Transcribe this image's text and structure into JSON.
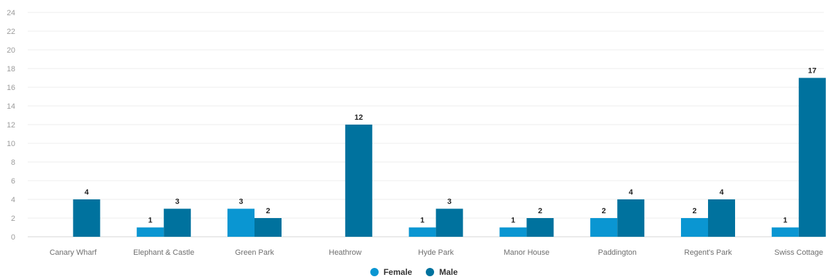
{
  "chart_data": {
    "type": "bar",
    "categories": [
      "Canary Wharf",
      "Elephant & Castle",
      "Green Park",
      "Heathrow",
      "Hyde Park",
      "Manor House",
      "Paddington",
      "Regent's Park",
      "Swiss Cottage"
    ],
    "series": [
      {
        "name": "Female",
        "color": "#0a96d2",
        "values": [
          null,
          1,
          3,
          null,
          1,
          1,
          2,
          2,
          1
        ]
      },
      {
        "name": "Male",
        "color": "#00729e",
        "values": [
          4,
          3,
          2,
          12,
          3,
          2,
          4,
          4,
          17
        ]
      }
    ],
    "ylim": [
      0,
      24
    ],
    "yticks": [
      0,
      2,
      4,
      6,
      8,
      10,
      12,
      14,
      16,
      18,
      20,
      22,
      24
    ],
    "grid": true,
    "legend_position": "bottom-center",
    "title": "",
    "xlabel": "",
    "ylabel": ""
  }
}
